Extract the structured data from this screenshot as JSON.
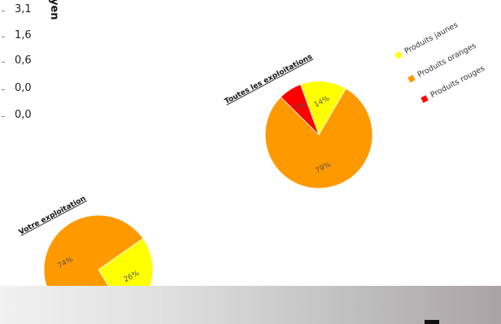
{
  "side_values": {
    "header": "yen",
    "values": [
      "3,1",
      "1,6",
      "0,6",
      "0,0",
      "0,0"
    ]
  },
  "chart_data": [
    {
      "type": "pie",
      "title": "Toutes les exploitations",
      "slices": [
        {
          "name": "Produits jaunes",
          "value": 14,
          "label": "14%",
          "color": "#ffff00"
        },
        {
          "name": "Produits oranges",
          "value": 79,
          "label": "79%",
          "color": "#ff9900"
        },
        {
          "name": "Produits rouges",
          "value": 7,
          "label": "7%",
          "color": "#ff0000"
        }
      ]
    },
    {
      "type": "pie",
      "title": "Votre exploitation",
      "slices": [
        {
          "name": "Produits jaunes",
          "value": 26,
          "label": "26%",
          "color": "#ffff00"
        },
        {
          "name": "Produits oranges",
          "value": 74,
          "label": "74%",
          "color": "#ff9900"
        }
      ]
    }
  ],
  "legend": [
    {
      "label": "Produits jaunes",
      "color": "#ffff00"
    },
    {
      "label": "Produits oranges",
      "color": "#ff9900"
    },
    {
      "label": "Produits rouges",
      "color": "#ff0000"
    }
  ]
}
